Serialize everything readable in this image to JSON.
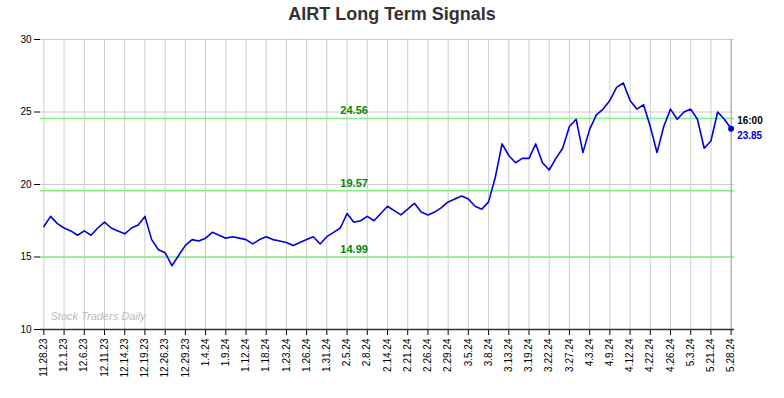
{
  "chart_data": {
    "type": "line",
    "title": "AIRT Long Term Signals",
    "title_color": "#333333",
    "categories": [
      "11.28.23",
      null,
      null,
      "12.1.23",
      null,
      null,
      "12.6.23",
      null,
      null,
      "12.11.23",
      null,
      null,
      "12.14.23",
      null,
      null,
      "12.19.23",
      null,
      null,
      "12.26.23",
      null,
      null,
      "12.29.23",
      null,
      null,
      "1.4.24",
      null,
      null,
      "1.9.24",
      null,
      null,
      "1.12.24",
      null,
      null,
      "1.18.24",
      null,
      null,
      "1.23.24",
      null,
      null,
      "1.26.24",
      null,
      null,
      "1.31.24",
      null,
      null,
      "2.5.24",
      null,
      null,
      "2.8.24",
      null,
      null,
      "2.14.24",
      null,
      null,
      "2.21.24",
      null,
      null,
      "2.26.24",
      null,
      null,
      "2.29.24",
      null,
      null,
      "3.5.24",
      null,
      null,
      "3.8.24",
      null,
      null,
      "3.13.24",
      null,
      null,
      "3.19.24",
      null,
      null,
      "3.22.24",
      null,
      null,
      "3.27.24",
      null,
      null,
      "4.3.24",
      null,
      null,
      "4.9.24",
      null,
      null,
      "4.12.24",
      null,
      null,
      "4.22.24",
      null,
      null,
      "4.26.24",
      null,
      null,
      "5.3.24",
      null,
      null,
      "5.21.24",
      null,
      null,
      "5.28.24"
    ],
    "values": [
      17.1,
      17.8,
      17.3,
      17.0,
      16.8,
      16.5,
      16.8,
      16.5,
      17.0,
      17.4,
      17.0,
      16.8,
      16.6,
      17.0,
      17.2,
      17.8,
      16.2,
      15.5,
      15.3,
      14.4,
      15.1,
      15.8,
      16.2,
      16.1,
      16.3,
      16.7,
      16.5,
      16.3,
      16.4,
      16.3,
      16.2,
      15.9,
      16.2,
      16.4,
      16.2,
      16.1,
      16.0,
      15.8,
      16.0,
      16.2,
      16.4,
      15.9,
      16.4,
      16.7,
      17.0,
      18.0,
      17.4,
      17.5,
      17.8,
      17.5,
      18.0,
      18.5,
      18.2,
      17.9,
      18.3,
      18.7,
      18.1,
      17.9,
      18.1,
      18.4,
      18.8,
      19.0,
      19.2,
      19.0,
      18.5,
      18.3,
      18.8,
      20.5,
      22.8,
      22.0,
      21.5,
      21.8,
      21.8,
      22.8,
      21.5,
      21.0,
      21.8,
      22.5,
      24.0,
      24.5,
      22.2,
      23.8,
      24.8,
      25.2,
      25.8,
      26.7,
      27.0,
      25.8,
      25.2,
      25.5,
      24.0,
      22.2,
      24.0,
      25.2,
      24.5,
      25.0,
      25.2,
      24.5,
      22.5,
      23.0,
      25.0,
      24.5,
      23.85
    ],
    "color": "#0000dd",
    "ylim": [
      10,
      30
    ],
    "yticks": [
      10,
      15,
      20,
      25,
      30
    ],
    "grid": true,
    "hlines": [
      {
        "value": 15.0,
        "label": "14.99",
        "color": "#88ee88",
        "label_color": "#008800"
      },
      {
        "value": 19.57,
        "label": "19.57",
        "color": "#88ee88",
        "label_color": "#008800"
      },
      {
        "value": 24.56,
        "label": "24.56",
        "color": "#88ee88",
        "label_color": "#008800"
      }
    ],
    "last_point": {
      "label": "16:00",
      "value": 23.85,
      "color": "#0000dd",
      "marker": "circle",
      "marker_color": "#0000cc",
      "vline_color": "#999999"
    },
    "watermark": {
      "text": "Stock Traders Daily",
      "color": "#bbbbbb"
    }
  }
}
